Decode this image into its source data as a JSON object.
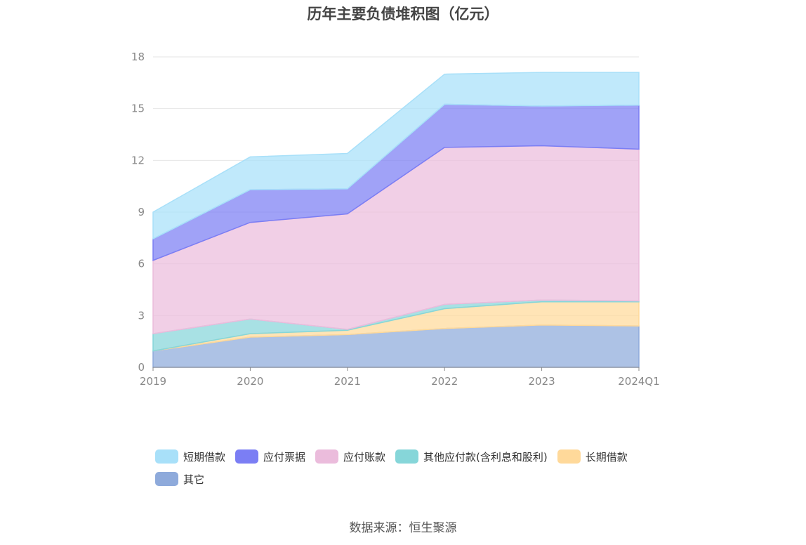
{
  "chart_data": {
    "type": "area",
    "stacked": true,
    "title": "历年主要负债堆积图（亿元）",
    "categories": [
      "2019",
      "2020",
      "2021",
      "2022",
      "2023",
      "2024Q1"
    ],
    "ylim": [
      0,
      18
    ],
    "yticks": [
      0,
      3,
      6,
      9,
      12,
      15,
      18
    ],
    "grid": true,
    "legend_position": "bottom",
    "series": [
      {
        "name": "其它",
        "color": "#8eaadb",
        "values": [
          0.95,
          1.75,
          1.9,
          2.25,
          2.45,
          2.4
        ]
      },
      {
        "name": "长期借款",
        "color": "#ffd99a",
        "values": [
          0.0,
          0.2,
          0.25,
          1.15,
          1.35,
          1.4
        ]
      },
      {
        "name": "其他应付款(含利息和股利)",
        "color": "#86d6d9",
        "values": [
          1.0,
          0.85,
          0.05,
          0.25,
          0.1,
          0.05
        ]
      },
      {
        "name": "应付账款",
        "color": "#ebbcdc",
        "values": [
          4.25,
          5.6,
          6.7,
          9.1,
          8.95,
          8.8
        ]
      },
      {
        "name": "应付票据",
        "color": "#7b7ef4",
        "values": [
          1.25,
          1.9,
          1.45,
          2.5,
          2.3,
          2.55
        ]
      },
      {
        "name": "短期借款",
        "color": "#a8e0f9",
        "values": [
          1.55,
          1.9,
          2.05,
          1.75,
          1.95,
          1.9
        ]
      }
    ]
  },
  "legend_order": [
    "短期借款",
    "应付票据",
    "应付账款",
    "其他应付款(含利息和股利)",
    "长期借款",
    "其它"
  ],
  "source_note": "数据来源：恒生聚源"
}
